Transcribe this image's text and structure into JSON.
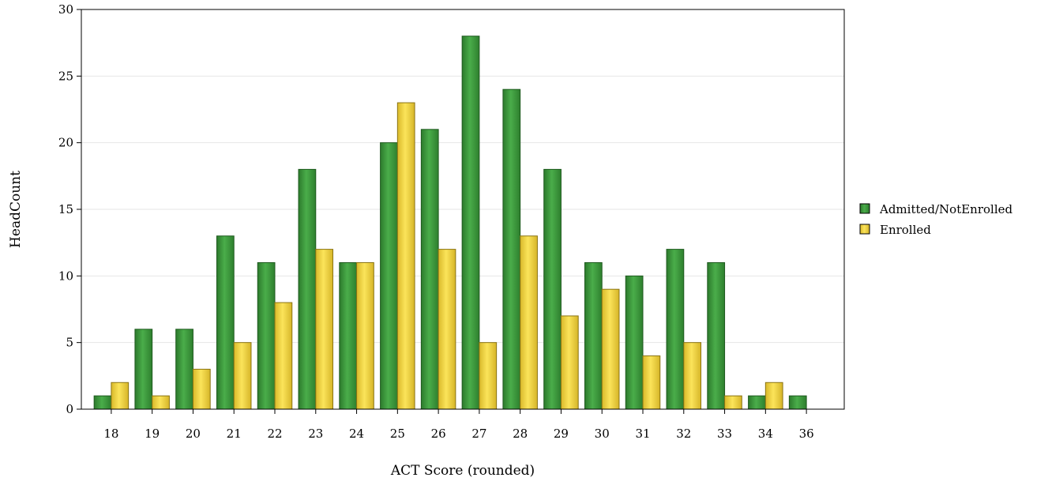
{
  "chart_data": {
    "type": "bar",
    "xlabel": "ACT Score (rounded)",
    "ylabel": "HeadCount",
    "categories": [
      "18",
      "19",
      "20",
      "21",
      "22",
      "23",
      "24",
      "25",
      "26",
      "27",
      "28",
      "29",
      "30",
      "31",
      "32",
      "33",
      "34",
      "36"
    ],
    "series": [
      {
        "name": "Admitted/NotEnrolled",
        "color": "#3a9a3a",
        "values": [
          1,
          6,
          6,
          13,
          11,
          18,
          11,
          20,
          21,
          28,
          24,
          18,
          11,
          10,
          12,
          11,
          1,
          1
        ]
      },
      {
        "name": "Enrolled",
        "color": "#f2d840",
        "values": [
          2,
          1,
          3,
          5,
          8,
          12,
          11,
          23,
          12,
          5,
          13,
          7,
          9,
          4,
          5,
          1,
          2,
          0
        ]
      }
    ],
    "ylim": [
      0,
      30
    ],
    "yticks": [
      0,
      5,
      10,
      15,
      20,
      25,
      30
    ],
    "grid": true,
    "legend_position": "right"
  }
}
